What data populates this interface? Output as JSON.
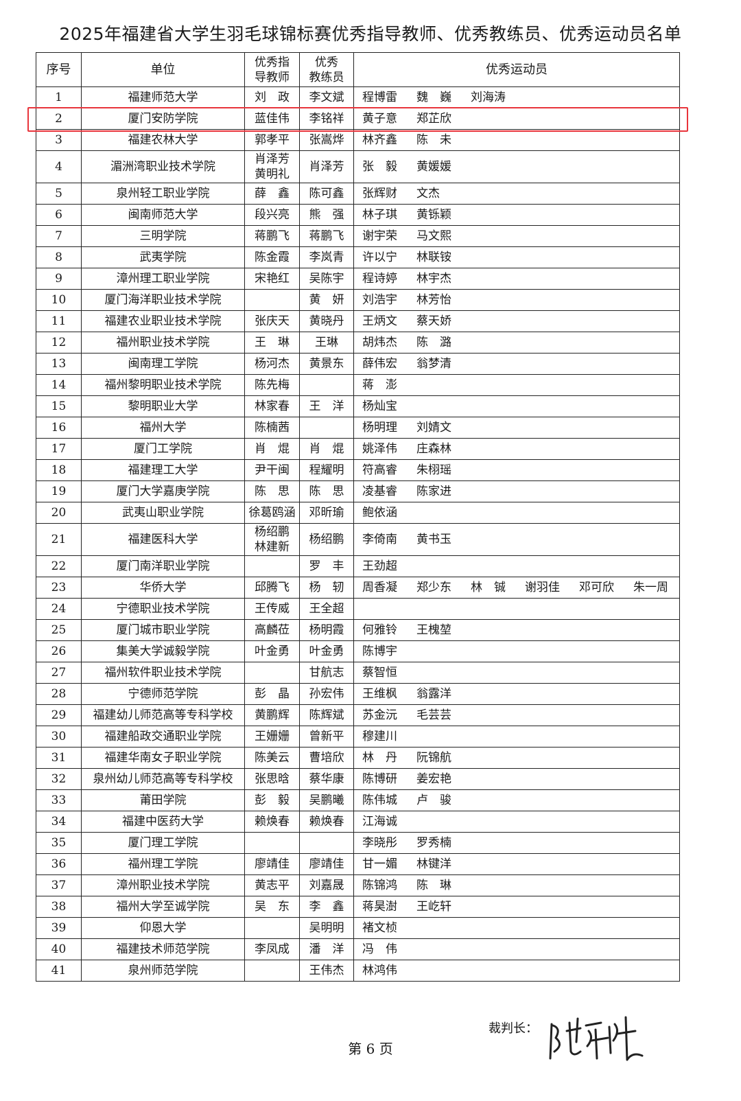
{
  "title": "2025年福建省大学生羽毛球锦标赛优秀指导教师、优秀教练员、优秀运动员名单",
  "headers": {
    "no": "序号",
    "unit": "单位",
    "teacher_1": "优秀指",
    "teacher_2": "导教师",
    "coach_1": "优秀",
    "coach_2": "教练员",
    "athletes": "优秀运动员"
  },
  "highlight_color": "#e8343b",
  "rows": [
    {
      "no": "1",
      "unit": "福建师范大学",
      "teacher": [
        "刘　政"
      ],
      "coach": "李文斌",
      "athletes": [
        "程博雷",
        "魏　巍",
        "刘海涛"
      ]
    },
    {
      "no": "2",
      "unit": "厦门安防学院",
      "teacher": [
        "蓝佳伟"
      ],
      "coach": "李铭祥",
      "athletes": [
        "黄子意",
        "郑芷欣"
      ],
      "highlighted": true
    },
    {
      "no": "3",
      "unit": "福建农林大学",
      "teacher": [
        "郭孝平"
      ],
      "coach": "张嵩烨",
      "athletes": [
        "林齐鑫",
        "陈　未"
      ]
    },
    {
      "no": "4",
      "unit": "湄洲湾职业技术学院",
      "teacher": [
        "肖泽芳",
        "黄明礼"
      ],
      "coach": "肖泽芳",
      "athletes": [
        "张　毅",
        "黄媛媛"
      ]
    },
    {
      "no": "5",
      "unit": "泉州轻工职业学院",
      "teacher": [
        "薛　鑫"
      ],
      "coach": "陈可鑫",
      "athletes": [
        "张辉财",
        "文杰"
      ]
    },
    {
      "no": "6",
      "unit": "闽南师范大学",
      "teacher": [
        "段兴亮"
      ],
      "coach": "熊　强",
      "athletes": [
        "林子琪",
        "黄铄颖"
      ]
    },
    {
      "no": "7",
      "unit": "三明学院",
      "teacher": [
        "蒋鹏飞"
      ],
      "coach": "蒋鹏飞",
      "athletes": [
        "谢宇荣",
        "马文熙"
      ]
    },
    {
      "no": "8",
      "unit": "武夷学院",
      "teacher": [
        "陈金霞"
      ],
      "coach": "李岚青",
      "athletes": [
        "许以宁",
        "林联铵"
      ]
    },
    {
      "no": "9",
      "unit": "漳州理工职业学院",
      "teacher": [
        "宋艳红"
      ],
      "coach": "吴陈宇",
      "athletes": [
        "程诗婷",
        "林宇杰"
      ]
    },
    {
      "no": "10",
      "unit": "厦门海洋职业技术学院",
      "teacher": [],
      "coach": "黄　妍",
      "athletes": [
        "刘浩宇",
        "林芳怡"
      ]
    },
    {
      "no": "11",
      "unit": "福建农业职业技术学院",
      "teacher": [
        "张庆天"
      ],
      "coach": "黄晓丹",
      "athletes": [
        "王炳文",
        "蔡天娇"
      ]
    },
    {
      "no": "12",
      "unit": "福州职业技术学院",
      "teacher": [
        "王　琳"
      ],
      "coach": "王琳",
      "athletes": [
        "胡炜杰",
        "陈　潞"
      ]
    },
    {
      "no": "13",
      "unit": "闽南理工学院",
      "teacher": [
        "杨河杰"
      ],
      "coach": "黄景东",
      "athletes": [
        "薛伟宏",
        "翁梦清"
      ]
    },
    {
      "no": "14",
      "unit": "福州黎明职业技术学院",
      "teacher": [
        "陈先梅"
      ],
      "coach": "",
      "athletes": [
        "蒋　澎"
      ]
    },
    {
      "no": "15",
      "unit": "黎明职业大学",
      "teacher": [
        "林家春"
      ],
      "coach": "王　洋",
      "athletes": [
        "杨灿宝"
      ]
    },
    {
      "no": "16",
      "unit": "福州大学",
      "teacher": [
        "陈楠茜"
      ],
      "coach": "",
      "athletes": [
        "杨明理",
        "刘婧文"
      ]
    },
    {
      "no": "17",
      "unit": "厦门工学院",
      "teacher": [
        "肖　焜"
      ],
      "coach": "肖　焜",
      "athletes": [
        "姚泽伟",
        "庄森林"
      ]
    },
    {
      "no": "18",
      "unit": "福建理工大学",
      "teacher": [
        "尹干闽"
      ],
      "coach": "程耀明",
      "athletes": [
        "符高睿",
        "朱栩瑶"
      ]
    },
    {
      "no": "19",
      "unit": "厦门大学嘉庚学院",
      "teacher": [
        "陈　思"
      ],
      "coach": "陈　思",
      "athletes": [
        "凌基睿",
        "陈家进"
      ]
    },
    {
      "no": "20",
      "unit": "武夷山职业学院",
      "teacher": [
        "徐葛鸥涵"
      ],
      "coach": "邓昕瑜",
      "athletes": [
        "鲍依涵"
      ]
    },
    {
      "no": "21",
      "unit": "福建医科大学",
      "teacher": [
        "杨绍鹏",
        "林建新"
      ],
      "coach": "杨绍鹏",
      "athletes": [
        "李倚南",
        "黄书玉"
      ]
    },
    {
      "no": "22",
      "unit": "厦门南洋职业学院",
      "teacher": [],
      "coach": "罗　丰",
      "athletes": [
        "王劲超"
      ]
    },
    {
      "no": "23",
      "unit": "华侨大学",
      "teacher": [
        "邱腾飞"
      ],
      "coach": "杨　轫",
      "athletes": [
        "周香凝",
        "郑少东",
        "林　铖",
        "谢羽佳",
        "邓可欣",
        "朱一周"
      ]
    },
    {
      "no": "24",
      "unit": "宁德职业技术学院",
      "teacher": [
        "王传威"
      ],
      "coach": "王全超",
      "athletes": []
    },
    {
      "no": "25",
      "unit": "厦门城市职业学院",
      "teacher": [
        "高麟莅"
      ],
      "coach": "杨明霞",
      "athletes": [
        "何雅铃",
        "王槐堃"
      ]
    },
    {
      "no": "26",
      "unit": "集美大学诚毅学院",
      "teacher": [
        "叶金勇"
      ],
      "coach": "叶金勇",
      "athletes": [
        "陈博宇"
      ]
    },
    {
      "no": "27",
      "unit": "福州软件职业技术学院",
      "teacher": [],
      "coach": "甘航志",
      "athletes": [
        "蔡智恒"
      ]
    },
    {
      "no": "28",
      "unit": "宁德师范学院",
      "teacher": [
        "彭　晶"
      ],
      "coach": "孙宏伟",
      "athletes": [
        "王维枫",
        "翁露洋"
      ]
    },
    {
      "no": "29",
      "unit": "福建幼儿师范高等专科学校",
      "teacher": [
        "黄鹏辉"
      ],
      "coach": "陈辉斌",
      "athletes": [
        "苏金沅",
        "毛芸芸"
      ]
    },
    {
      "no": "30",
      "unit": "福建船政交通职业学院",
      "teacher": [
        "王姗姗"
      ],
      "coach": "曾新平",
      "athletes": [
        "穆建川"
      ]
    },
    {
      "no": "31",
      "unit": "福建华南女子职业学院",
      "teacher": [
        "陈美云"
      ],
      "coach": "曹培欣",
      "athletes": [
        "林　丹",
        "阮锦航"
      ]
    },
    {
      "no": "32",
      "unit": "泉州幼儿师范高等专科学校",
      "teacher": [
        "张思晗"
      ],
      "coach": "蔡华康",
      "athletes": [
        "陈博研",
        "姜宏艳"
      ]
    },
    {
      "no": "33",
      "unit": "莆田学院",
      "teacher": [
        "彭　毅"
      ],
      "coach": "吴鹏曦",
      "athletes": [
        "陈伟城",
        "卢　骏"
      ]
    },
    {
      "no": "34",
      "unit": "福建中医药大学",
      "teacher": [
        "赖焕春"
      ],
      "coach": "赖焕春",
      "athletes": [
        "江海诚"
      ]
    },
    {
      "no": "35",
      "unit": "厦门理工学院",
      "teacher": [],
      "coach": "",
      "athletes": [
        "李晓彤",
        "罗秀楠"
      ]
    },
    {
      "no": "36",
      "unit": "福州理工学院",
      "teacher": [
        "廖靖佳"
      ],
      "coach": "廖靖佳",
      "athletes": [
        "甘一媚",
        "林键洋"
      ]
    },
    {
      "no": "37",
      "unit": "漳州职业技术学院",
      "teacher": [
        "黄志平"
      ],
      "coach": "刘嘉晟",
      "athletes": [
        "陈锦鸿",
        "陈　琳"
      ]
    },
    {
      "no": "38",
      "unit": "福州大学至诚学院",
      "teacher": [
        "吴　东"
      ],
      "coach": "李　鑫",
      "athletes": [
        "蒋昊澍",
        "王屹轩"
      ]
    },
    {
      "no": "39",
      "unit": "仰恩大学",
      "teacher": [],
      "coach": "吴明明",
      "athletes": [
        "褚文桢"
      ]
    },
    {
      "no": "40",
      "unit": "福建技术师范学院",
      "teacher": [
        "李凤成"
      ],
      "coach": "潘　洋",
      "athletes": [
        "冯　伟"
      ]
    },
    {
      "no": "41",
      "unit": "泉州师范学院",
      "teacher": [],
      "coach": "王伟杰",
      "athletes": [
        "林鸿伟"
      ]
    }
  ],
  "footer": {
    "judge_label": "裁判长：",
    "signature": "陈莉彬",
    "page": "第 6 页"
  }
}
